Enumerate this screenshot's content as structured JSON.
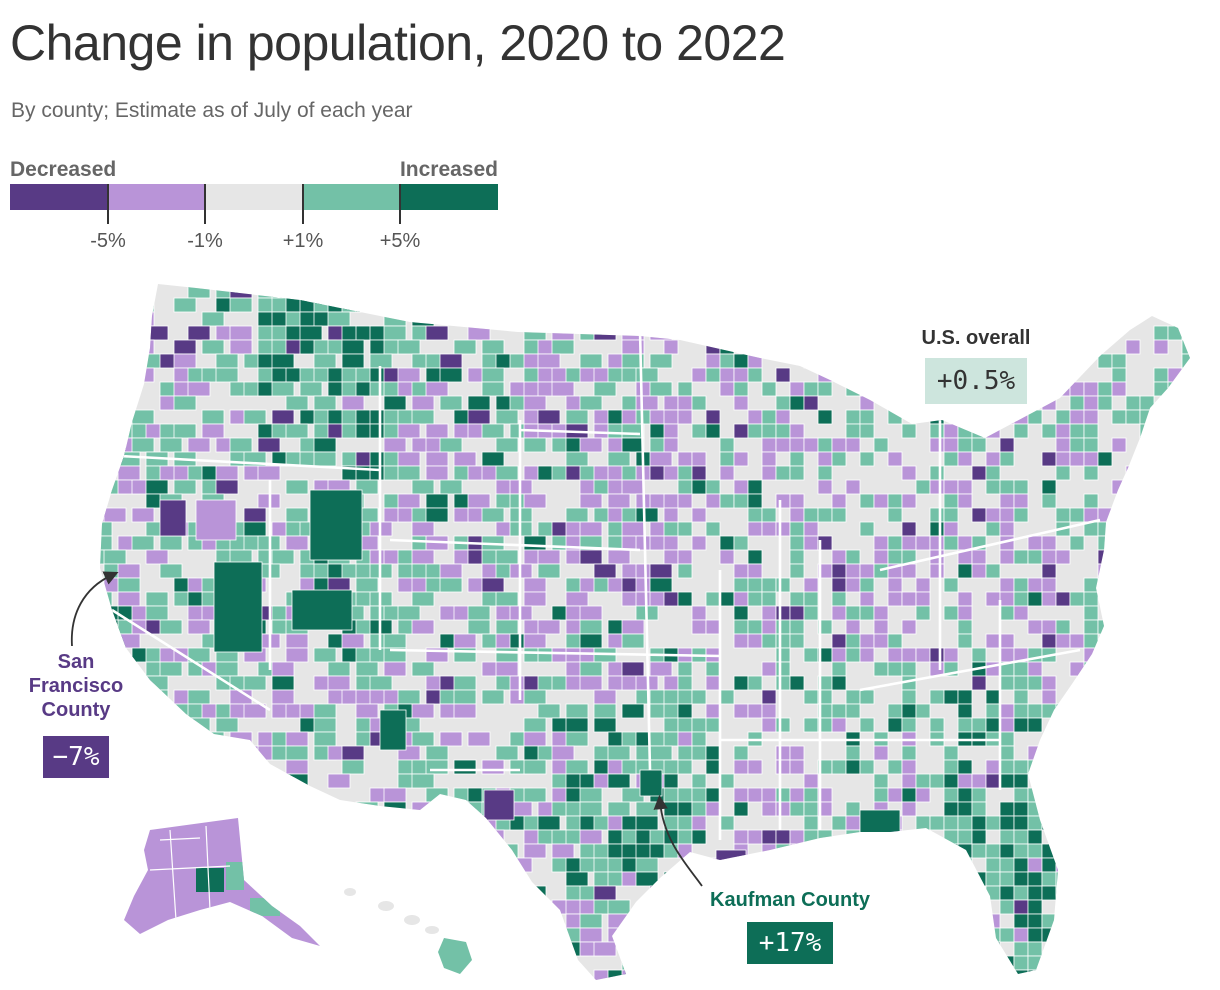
{
  "header": {
    "title": "Change in population, 2020 to 2022",
    "subtitle": "By county; Estimate as of July of each year"
  },
  "legend": {
    "low_label": "Decreased",
    "high_label": "Increased",
    "colors": [
      "#583a85",
      "#b994d8",
      "#e6e6e6",
      "#73c1a7",
      "#0d6e57"
    ],
    "ticks": [
      "-5%",
      "-1%",
      "+1%",
      "+5%"
    ]
  },
  "callouts": {
    "us": {
      "name": "U.S. overall",
      "value": "+0.5%"
    },
    "sf": {
      "name": "San Francisco County",
      "value": "−7%"
    },
    "kaufman": {
      "name": "Kaufman County",
      "value": "+17%"
    }
  },
  "map": {
    "type": "choropleth",
    "unit": "county",
    "background_color": "#e6e6e6",
    "border_color": "#ffffff"
  }
}
